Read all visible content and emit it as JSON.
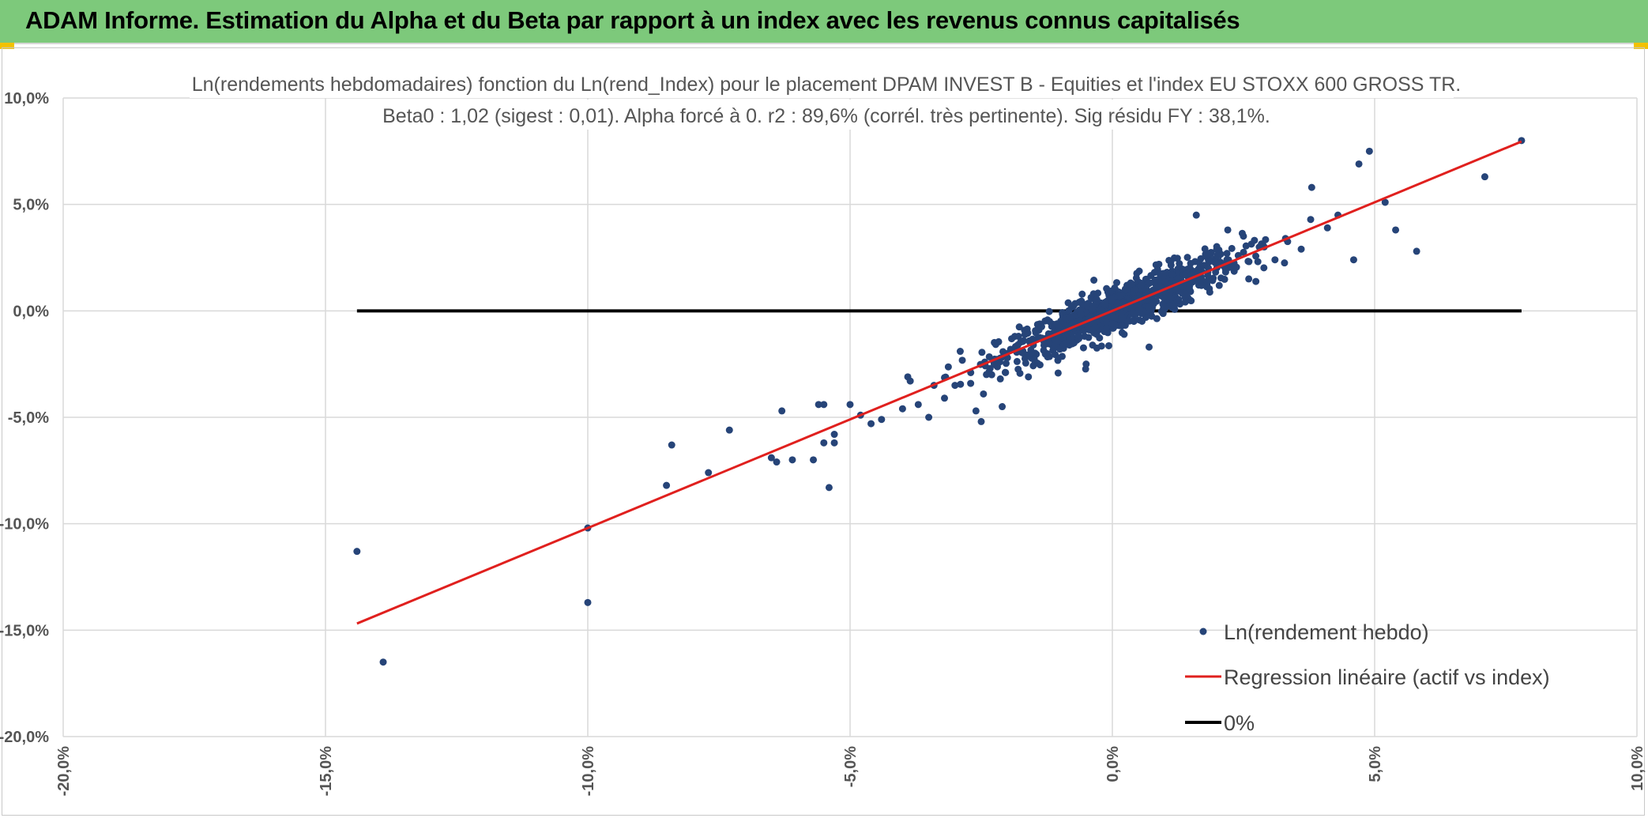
{
  "banner": {
    "title": "ADAM Informe. Estimation du Alpha et du Beta par rapport à un index avec les revenus connus capitalisés"
  },
  "chart_data": {
    "type": "scatter",
    "title_line1": "Ln(rendements hebdomadaires) fonction du Ln(rend_Index) pour le placement DPAM INVEST B - Equities  et l'index EU STOXX 600 GROSS TR.",
    "title_line2": "Beta0 : 1,02 (sigest : 0,01). Alpha forcé à 0. r2 : 89,6% (corrél. très pertinente). Sig résidu FY : 38,1%.",
    "xlim": [
      -20,
      10
    ],
    "ylim": [
      -20,
      10
    ],
    "x_ticks": [
      -20,
      -15,
      -10,
      -5,
      0,
      5,
      10
    ],
    "y_ticks": [
      -20,
      -15,
      -10,
      -5,
      0,
      5,
      10
    ],
    "x_tick_labels": [
      "-20,0%",
      "-15,0%",
      "-10,0%",
      "-5,0%",
      "0,0%",
      "5,0%",
      "10,0%"
    ],
    "y_tick_labels": [
      "-20,0%",
      "-15,0%",
      "-10,0%",
      "-5,0%",
      "0,0%",
      "5,0%",
      "10,0%"
    ],
    "grid": true,
    "colors": {
      "scatter": "#264478",
      "regression": "#e0201e",
      "zero": "#000000",
      "grid": "#d9d9d9"
    },
    "series": [
      {
        "name": "Ln(rendement hebdo)",
        "kind": "scatter",
        "points": [
          [
            -14.4,
            -11.3
          ],
          [
            -13.9,
            -16.5
          ],
          [
            -10.0,
            -10.2
          ],
          [
            -10.0,
            -13.7
          ],
          [
            -8.5,
            -8.2
          ],
          [
            -8.4,
            -6.3
          ],
          [
            -7.7,
            -7.6
          ],
          [
            -7.3,
            -5.6
          ],
          [
            -6.5,
            -6.9
          ],
          [
            -6.4,
            -7.1
          ],
          [
            -6.3,
            -4.7
          ],
          [
            -6.1,
            -7.0
          ],
          [
            -5.7,
            -7.0
          ],
          [
            -5.6,
            -4.4
          ],
          [
            -5.5,
            -4.4
          ],
          [
            -5.5,
            -6.2
          ],
          [
            -5.4,
            -8.3
          ],
          [
            -5.3,
            -6.2
          ],
          [
            -5.3,
            -5.8
          ],
          [
            -5.0,
            -4.4
          ],
          [
            -4.8,
            -4.9
          ],
          [
            -4.6,
            -5.3
          ],
          [
            -4.4,
            -5.1
          ],
          [
            -4.0,
            -4.6
          ],
          [
            -3.9,
            -3.1
          ],
          [
            -3.7,
            -4.4
          ],
          [
            -3.5,
            -5.0
          ],
          [
            -3.4,
            -3.5
          ],
          [
            -3.2,
            -4.1
          ],
          [
            -3.0,
            -3.5
          ],
          [
            -2.9,
            -1.9
          ],
          [
            -2.7,
            -2.9
          ],
          [
            -2.6,
            -4.7
          ],
          [
            -2.5,
            -5.2
          ],
          [
            -2.3,
            -3.0
          ],
          [
            -2.1,
            -4.5
          ],
          [
            -2.0,
            -2.2
          ],
          [
            -1.8,
            -1.6
          ],
          [
            -1.6,
            -3.1
          ],
          [
            -1.4,
            -0.9
          ],
          [
            -1.2,
            -1.1
          ],
          [
            -1.0,
            -1.8
          ],
          [
            -0.8,
            -0.3
          ],
          [
            -0.5,
            -2.5
          ],
          [
            -0.3,
            -1.1
          ],
          [
            0.0,
            -0.6
          ],
          [
            0.2,
            0.4
          ],
          [
            0.4,
            -0.1
          ],
          [
            0.5,
            0.6
          ],
          [
            0.7,
            -1.7
          ],
          [
            0.8,
            1.0
          ],
          [
            1.0,
            0.1
          ],
          [
            1.2,
            1.3
          ],
          [
            1.5,
            1.7
          ],
          [
            1.6,
            4.5
          ],
          [
            1.8,
            2.1
          ],
          [
            2.0,
            2.2
          ],
          [
            2.2,
            3.8
          ],
          [
            2.4,
            2.6
          ],
          [
            2.6,
            1.5
          ],
          [
            2.8,
            3.0
          ],
          [
            3.1,
            2.4
          ],
          [
            3.3,
            3.4
          ],
          [
            3.6,
            2.9
          ],
          [
            3.8,
            5.8
          ],
          [
            4.1,
            3.9
          ],
          [
            4.3,
            4.5
          ],
          [
            4.6,
            2.4
          ],
          [
            4.7,
            6.9
          ],
          [
            4.9,
            7.5
          ],
          [
            5.2,
            5.1
          ],
          [
            5.4,
            3.8
          ],
          [
            5.8,
            2.8
          ],
          [
            7.1,
            6.3
          ],
          [
            7.8,
            8.0
          ]
        ]
      },
      {
        "name": "Regression linéaire (actif vs index)",
        "kind": "line",
        "slope": 1.02,
        "x_range": [
          -14.4,
          7.8
        ]
      },
      {
        "name": "0%",
        "kind": "hline",
        "y": 0,
        "x_range": [
          -14.4,
          7.8
        ]
      }
    ],
    "legend": {
      "placement": "bottom-right",
      "items": [
        "Ln(rendement hebdo)",
        "Regression linéaire (actif vs index)",
        "0%"
      ]
    }
  }
}
